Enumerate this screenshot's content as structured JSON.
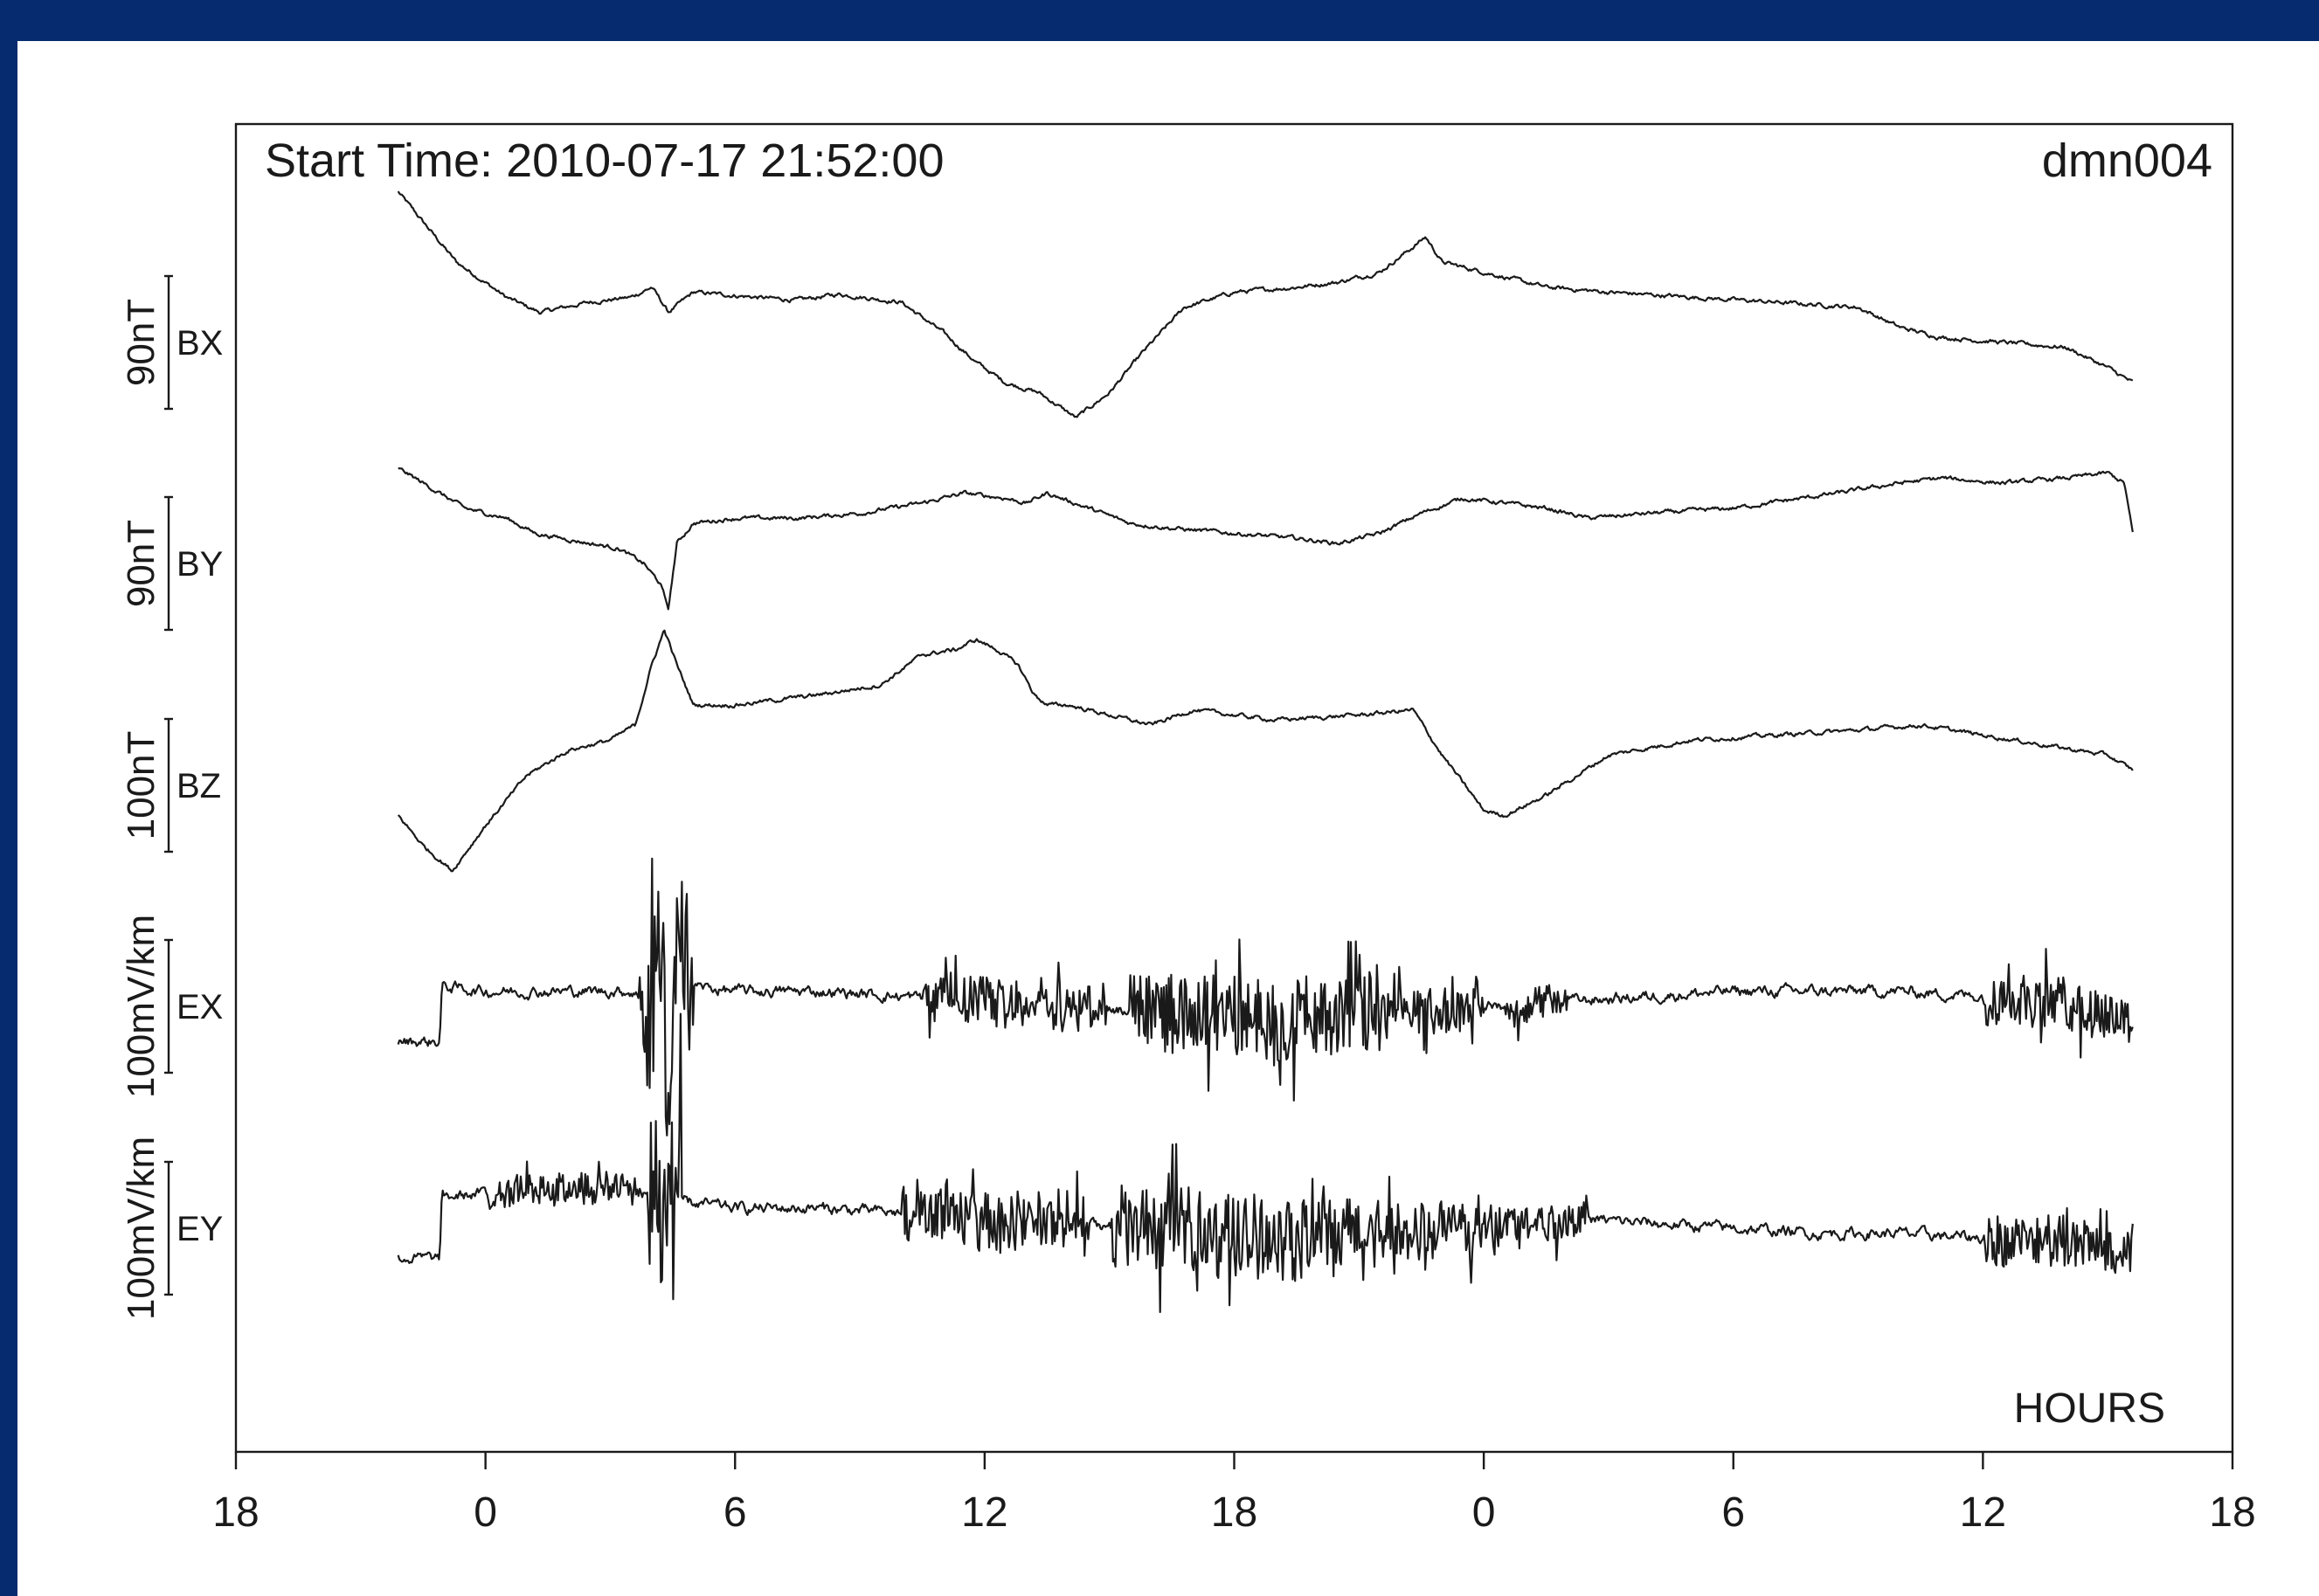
{
  "chart_data": {
    "type": "line",
    "title": "Start Time: 2010-07-17 21:52:00",
    "station": "dmn004",
    "xlabel": "HOURS",
    "x_tick_labels": [
      "18",
      "0",
      "6",
      "12",
      "18",
      "0",
      "6",
      "12",
      "18"
    ],
    "x_ticks_hours": [
      -6,
      0,
      6,
      12,
      18,
      24,
      30,
      36,
      42
    ],
    "xlim": [
      -6,
      42
    ],
    "grid": false,
    "series": [
      {
        "name": "BX",
        "scale_label": "90nT",
        "noise": 3,
        "x": [
          -2.1,
          -1.5,
          -0.7,
          0.5,
          1.3,
          2.5,
          3.5,
          4.0,
          4.4,
          5.0,
          6.5,
          7.5,
          8.5,
          10.0,
          11.0,
          11.8,
          12.5,
          13.3,
          14.2,
          15.0,
          15.8,
          16.8,
          18.0,
          19.5,
          20.5,
          21.5,
          22.3,
          22.6,
          23.0,
          24.5,
          25.5,
          27.0,
          29.0,
          31.0,
          33.0,
          34.0,
          35.0,
          36.5,
          38.0,
          39.0,
          39.6
        ],
        "y": [
          150,
          120,
          80,
          45,
          30,
          40,
          45,
          55,
          30,
          50,
          45,
          42,
          48,
          40,
          10,
          -20,
          -40,
          -50,
          -75,
          -50,
          -10,
          35,
          50,
          55,
          60,
          70,
          95,
          105,
          80,
          65,
          55,
          50,
          45,
          40,
          35,
          15,
          5,
          0,
          -5,
          -25,
          -40
        ]
      },
      {
        "name": "BY",
        "scale_label": "90nT",
        "noise": 3,
        "x": [
          -2.1,
          -1.5,
          -0.5,
          0.5,
          1.2,
          2.5,
          3.2,
          3.8,
          4.2,
          4.4,
          4.6,
          5.0,
          6.0,
          7.5,
          9.0,
          10.5,
          11.5,
          12.5,
          13.0,
          13.5,
          14.5,
          15.5,
          16.5,
          18.0,
          19.5,
          20.5,
          21.5,
          22.5,
          23.5,
          24.5,
          25.5,
          26.5,
          28.0,
          30.0,
          32.5,
          34.0,
          35.0,
          36.5,
          38.0,
          39.0,
          39.4,
          39.6
        ],
        "y": [
          95,
          80,
          55,
          45,
          30,
          20,
          15,
          0,
          -20,
          -45,
          20,
          40,
          45,
          45,
          50,
          60,
          70,
          65,
          60,
          70,
          55,
          40,
          35,
          30,
          25,
          20,
          30,
          50,
          65,
          60,
          55,
          45,
          50,
          55,
          70,
          80,
          85,
          80,
          85,
          90,
          80,
          30
        ]
      },
      {
        "name": "BZ",
        "scale_label": "100nT",
        "noise": 3,
        "x": [
          -2.1,
          -1.5,
          -0.8,
          0,
          1.0,
          2.0,
          3.0,
          3.6,
          4.0,
          4.3,
          4.6,
          5.0,
          6.0,
          8.0,
          9.5,
          10.5,
          11.3,
          11.8,
          12.3,
          12.8,
          13.2,
          13.5,
          14.0,
          15.0,
          16.0,
          17.0,
          18.0,
          19.0,
          21.0,
          22.3,
          23.0,
          24.0,
          24.5,
          25.5,
          27.0,
          29.0,
          31.0,
          33.0,
          34.5,
          36.0,
          37.5,
          39.0,
          39.6
        ],
        "y": [
          -30,
          -60,
          -85,
          -40,
          10,
          35,
          45,
          60,
          120,
          155,
          120,
          80,
          80,
          90,
          100,
          130,
          135,
          145,
          135,
          120,
          90,
          80,
          80,
          70,
          60,
          75,
          70,
          65,
          70,
          75,
          30,
          -25,
          -30,
          -10,
          30,
          45,
          50,
          55,
          60,
          50,
          40,
          30,
          15
        ]
      },
      {
        "name": "EX",
        "scale_label": "100mV/km",
        "noise": 8,
        "x": [
          -2.1,
          -1.1,
          -1.05,
          0,
          2,
          3.5,
          4.0,
          4.2,
          4.4,
          4.6,
          5.0,
          6,
          8,
          10,
          12,
          14,
          16,
          18,
          20,
          22,
          24,
          26,
          28,
          30,
          32,
          34,
          36,
          38,
          39.6
        ],
        "y": [
          -35,
          -35,
          20,
          15,
          15,
          15,
          0,
          60,
          -80,
          40,
          20,
          15,
          15,
          10,
          5,
          0,
          -5,
          -10,
          -10,
          -5,
          0,
          5,
          10,
          15,
          15,
          15,
          10,
          0,
          -10
        ],
        "bursts": [
          {
            "x": [
              3.7,
              5.0
            ],
            "amp": 90
          },
          {
            "x": [
              10.5,
              15.0
            ],
            "amp": 24
          },
          {
            "x": [
              15.5,
              21.5
            ],
            "amp": 40
          },
          {
            "x": [
              21.5,
              24.0
            ],
            "amp": 22
          },
          {
            "x": [
              24.5,
              26.0
            ],
            "amp": 15
          },
          {
            "x": [
              36.0,
              39.6
            ],
            "amp": 25
          }
        ]
      },
      {
        "name": "EY",
        "scale_label": "100mV/km",
        "noise": 8,
        "x": [
          -2.1,
          -1.1,
          -1.05,
          0,
          2,
          3.5,
          4.0,
          4.3,
          4.6,
          5.0,
          6,
          8,
          10,
          12,
          14,
          16,
          18,
          20,
          22,
          24,
          26,
          28,
          30,
          32,
          34,
          36,
          38,
          39.6
        ],
        "y": [
          -30,
          -30,
          30,
          35,
          40,
          40,
          30,
          0,
          30,
          25,
          20,
          20,
          15,
          10,
          5,
          0,
          -5,
          -10,
          -5,
          0,
          10,
          5,
          0,
          -5,
          -5,
          -10,
          -15,
          -20
        ],
        "bursts": [
          {
            "x": [
              0,
              3.7
            ],
            "amp": 15
          },
          {
            "x": [
              3.9,
              4.7
            ],
            "amp": 95
          },
          {
            "x": [
              10.0,
              14.5
            ],
            "amp": 28
          },
          {
            "x": [
              15.0,
              21.5
            ],
            "amp": 40
          },
          {
            "x": [
              21.5,
              24.5
            ],
            "amp": 28
          },
          {
            "x": [
              24.5,
              26.5
            ],
            "amp": 18
          },
          {
            "x": [
              36.0,
              39.6
            ],
            "amp": 25
          }
        ]
      }
    ]
  }
}
